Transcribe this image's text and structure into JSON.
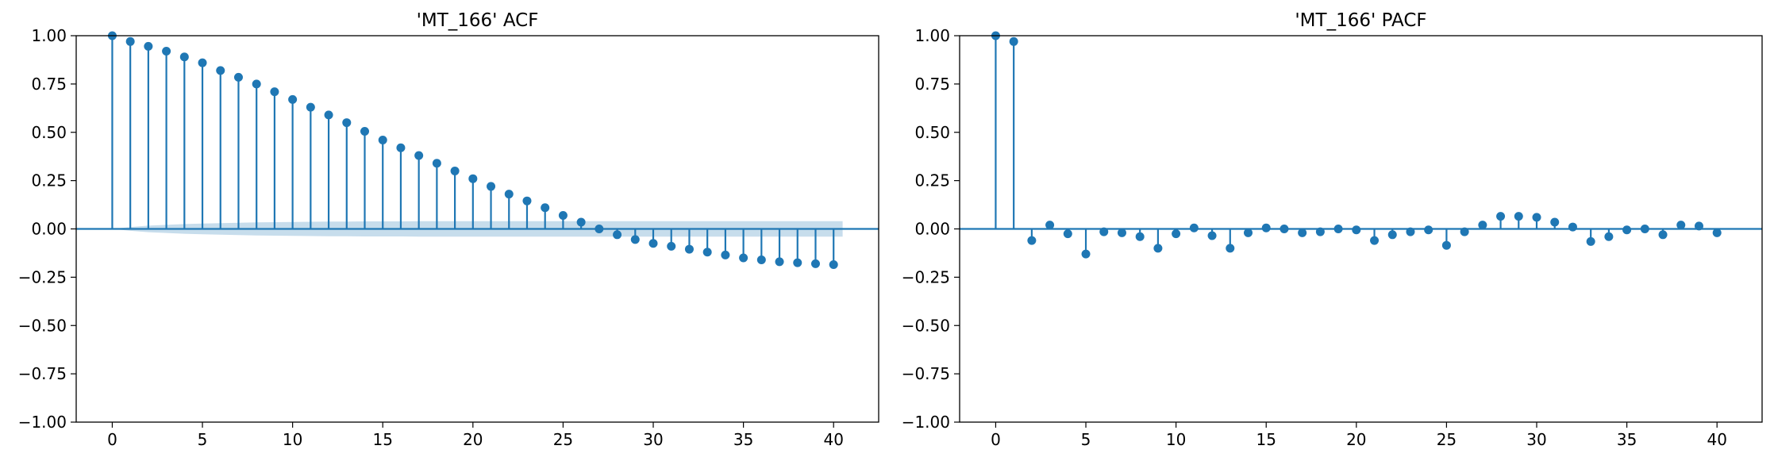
{
  "colors": {
    "series": "#1f77b4",
    "confidence_band": "#1f77b4",
    "axes": "#000000",
    "background": "#ffffff"
  },
  "chart_data": [
    {
      "type": "stem",
      "title": "'MT_166' ACF",
      "xlabel": "",
      "ylabel": "",
      "xlim": [
        -2,
        42.5
      ],
      "ylim": [
        -1.0,
        1.0
      ],
      "x_ticks": [
        0,
        5,
        10,
        15,
        20,
        25,
        30,
        35,
        40
      ],
      "x_tick_labels": [
        "0",
        "5",
        "10",
        "15",
        "20",
        "25",
        "30",
        "35",
        "40"
      ],
      "y_ticks": [
        -1.0,
        -0.75,
        -0.5,
        -0.25,
        0.0,
        0.25,
        0.5,
        0.75,
        1.0
      ],
      "y_tick_labels": [
        "−1.00",
        "−0.75",
        "−0.50",
        "−0.25",
        "0.00",
        "0.25",
        "0.50",
        "0.75",
        "1.00"
      ],
      "grid": false,
      "lags": [
        0,
        1,
        2,
        3,
        4,
        5,
        6,
        7,
        8,
        9,
        10,
        11,
        12,
        13,
        14,
        15,
        16,
        17,
        18,
        19,
        20,
        21,
        22,
        23,
        24,
        25,
        26,
        27,
        28,
        29,
        30,
        31,
        32,
        33,
        34,
        35,
        36,
        37,
        38,
        39,
        40
      ],
      "values": [
        1.0,
        0.97,
        0.945,
        0.92,
        0.89,
        0.86,
        0.82,
        0.785,
        0.75,
        0.71,
        0.67,
        0.63,
        0.59,
        0.55,
        0.505,
        0.46,
        0.42,
        0.38,
        0.34,
        0.3,
        0.26,
        0.22,
        0.18,
        0.145,
        0.11,
        0.07,
        0.035,
        0.0,
        -0.03,
        -0.055,
        -0.075,
        -0.09,
        -0.105,
        -0.12,
        -0.135,
        -0.15,
        -0.16,
        -0.17,
        -0.175,
        -0.18,
        -0.185
      ],
      "confidence_band": {
        "lags": [
          0,
          1,
          2,
          3,
          4,
          5,
          6,
          7,
          8,
          9,
          10,
          11,
          12,
          13,
          14,
          15,
          16,
          17,
          18,
          19,
          20,
          21,
          22,
          23,
          24,
          25,
          26,
          27,
          28,
          29,
          30,
          31,
          32,
          33,
          34,
          35,
          36,
          37,
          38,
          39,
          40
        ],
        "half_width": [
          0.0,
          0.01,
          0.017,
          0.021,
          0.025,
          0.028,
          0.03,
          0.032,
          0.034,
          0.035,
          0.036,
          0.037,
          0.038,
          0.038,
          0.039,
          0.039,
          0.039,
          0.04,
          0.04,
          0.04,
          0.04,
          0.04,
          0.04,
          0.04,
          0.04,
          0.04,
          0.04,
          0.04,
          0.04,
          0.04,
          0.04,
          0.04,
          0.04,
          0.04,
          0.04,
          0.04,
          0.04,
          0.04,
          0.04,
          0.04,
          0.04
        ]
      }
    },
    {
      "type": "stem",
      "title": "'MT_166' PACF",
      "xlabel": "",
      "ylabel": "",
      "xlim": [
        -2,
        42.5
      ],
      "ylim": [
        -1.0,
        1.0
      ],
      "x_ticks": [
        0,
        5,
        10,
        15,
        20,
        25,
        30,
        35,
        40
      ],
      "x_tick_labels": [
        "0",
        "5",
        "10",
        "15",
        "20",
        "25",
        "30",
        "35",
        "40"
      ],
      "y_ticks": [
        -1.0,
        -0.75,
        -0.5,
        -0.25,
        0.0,
        0.25,
        0.5,
        0.75,
        1.0
      ],
      "y_tick_labels": [
        "−1.00",
        "−0.75",
        "−0.50",
        "−0.25",
        "0.00",
        "0.25",
        "0.50",
        "0.75",
        "1.00"
      ],
      "grid": false,
      "lags": [
        0,
        1,
        2,
        3,
        4,
        5,
        6,
        7,
        8,
        9,
        10,
        11,
        12,
        13,
        14,
        15,
        16,
        17,
        18,
        19,
        20,
        21,
        22,
        23,
        24,
        25,
        26,
        27,
        28,
        29,
        30,
        31,
        32,
        33,
        34,
        35,
        36,
        37,
        38,
        39,
        40
      ],
      "values": [
        1.0,
        0.97,
        -0.06,
        0.02,
        -0.025,
        -0.13,
        -0.015,
        -0.02,
        -0.04,
        -0.1,
        -0.025,
        0.005,
        -0.035,
        -0.1,
        -0.02,
        0.005,
        0.0,
        -0.02,
        -0.015,
        0.0,
        -0.005,
        -0.06,
        -0.03,
        -0.015,
        -0.005,
        -0.085,
        -0.015,
        0.02,
        0.065,
        0.065,
        0.06,
        0.035,
        0.01,
        -0.065,
        -0.04,
        -0.005,
        0.0,
        -0.03,
        0.02,
        0.015,
        -0.02
      ],
      "confidence_band": {
        "lags": [
          0,
          1,
          2,
          3,
          4,
          5,
          6,
          7,
          8,
          9,
          10,
          11,
          12,
          13,
          14,
          15,
          16,
          17,
          18,
          19,
          20,
          21,
          22,
          23,
          24,
          25,
          26,
          27,
          28,
          29,
          30,
          31,
          32,
          33,
          34,
          35,
          36,
          37,
          38,
          39,
          40
        ],
        "half_width": [
          0.0,
          0.004,
          0.004,
          0.004,
          0.004,
          0.004,
          0.004,
          0.004,
          0.004,
          0.004,
          0.004,
          0.004,
          0.004,
          0.004,
          0.004,
          0.004,
          0.004,
          0.004,
          0.004,
          0.004,
          0.004,
          0.004,
          0.004,
          0.004,
          0.004,
          0.004,
          0.004,
          0.004,
          0.004,
          0.004,
          0.004,
          0.004,
          0.004,
          0.004,
          0.004,
          0.004,
          0.004,
          0.004,
          0.004,
          0.004,
          0.004
        ]
      }
    }
  ]
}
